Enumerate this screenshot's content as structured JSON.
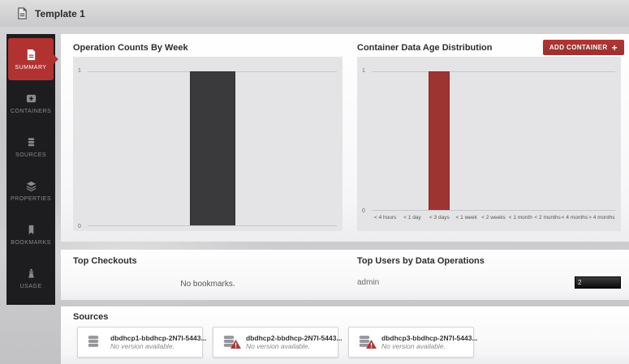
{
  "header": {
    "title": "Template 1"
  },
  "sidebar": {
    "items": [
      {
        "label": "SUMMARY",
        "icon": "document-icon",
        "selected": true
      },
      {
        "label": "CONTAINERS",
        "icon": "container-add-icon",
        "selected": false
      },
      {
        "label": "SOURCES",
        "icon": "database-icon",
        "selected": false
      },
      {
        "label": "PROPERTIES",
        "icon": "layers-icon",
        "selected": false
      },
      {
        "label": "BOOKMARKS",
        "icon": "bookmark-icon",
        "selected": false
      },
      {
        "label": "USAGE",
        "icon": "usage-icon",
        "selected": false
      }
    ]
  },
  "actions": {
    "add_container_label": "ADD CONTAINER",
    "add_container_plus": "+"
  },
  "chart_data": [
    {
      "type": "bar",
      "title": "Operation Counts By Week",
      "categories": [
        ""
      ],
      "values": [
        1
      ],
      "xlabel": "",
      "ylabel": "",
      "ylim": [
        0,
        1
      ],
      "grid": true,
      "legend": "none",
      "bar_color": "#3a3a3d"
    },
    {
      "type": "bar",
      "title": "Container Data Age Distribution",
      "categories": [
        "< 4 hours",
        "< 1 day",
        "< 3 days",
        "< 1 week",
        "< 2 weeks",
        "< 1 month",
        "< 2 months",
        "< 4 months",
        "> 4 months"
      ],
      "values": [
        0,
        0,
        1,
        0,
        0,
        0,
        0,
        0,
        0
      ],
      "xlabel": "",
      "ylabel": "",
      "ylim": [
        0,
        1
      ],
      "grid": true,
      "legend": "none",
      "bar_color": "#9e3432"
    }
  ],
  "top_checkouts": {
    "title": "Top Checkouts",
    "empty_text": "No bookmarks."
  },
  "top_users": {
    "title": "Top Users by Data Operations",
    "rows": [
      {
        "name": "admin",
        "value": 2
      }
    ]
  },
  "sources": {
    "title": "Sources",
    "cards": [
      {
        "name": "dbdhcp1-bbdhcp-2N7I-5443...",
        "status": "No version available.",
        "warning": false
      },
      {
        "name": "dbdhcp2-bbdhcp-2N7I-5443...",
        "status": "No version available.",
        "warning": true
      },
      {
        "name": "dbdhcp3-bbdhcp-2N7I-5443...",
        "status": "No version available.",
        "warning": true
      }
    ]
  },
  "colors": {
    "accent_red": "#a93431",
    "bar_dark": "#3a3a3d",
    "bar_red": "#9e3432",
    "sidebar_bg": "#1d1d1f"
  }
}
